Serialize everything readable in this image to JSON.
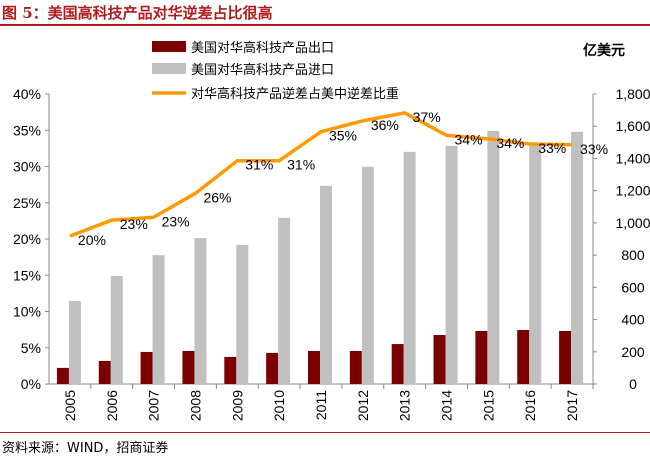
{
  "title": "图 5：美国高科技产品对华逆差占比很高",
  "source": "资料来源：WIND，招商证券",
  "chart_data": {
    "type": "bar+line",
    "categories": [
      "2005",
      "2006",
      "2007",
      "2008",
      "2009",
      "2010",
      "2011",
      "2012",
      "2013",
      "2014",
      "2015",
      "2016",
      "2017"
    ],
    "right_axis_unit": "亿美元",
    "series": [
      {
        "name": "美国对华高科技产品出口",
        "type": "bar",
        "axis": "right",
        "color": "#7b0000",
        "values": [
          100,
          143,
          199,
          205,
          168,
          193,
          205,
          205,
          248,
          304,
          329,
          335,
          329
        ]
      },
      {
        "name": "美国对华高科技产品进口",
        "type": "bar",
        "axis": "right",
        "color": "#c0c0c0",
        "values": [
          515,
          670,
          800,
          906,
          863,
          1031,
          1230,
          1348,
          1441,
          1478,
          1571,
          1484,
          1565
        ]
      },
      {
        "name": "对华高科技产品逆差占美中逆差比重",
        "type": "line",
        "axis": "left",
        "color": "#ff9900",
        "values": [
          20.4,
          22.6,
          23.0,
          26.3,
          30.8,
          30.8,
          34.8,
          36.3,
          37.4,
          34.3,
          33.8,
          33.1,
          33.0
        ],
        "labels": [
          "20%",
          "23%",
          "23%",
          "26%",
          "31%",
          "31%",
          "35%",
          "36%",
          "37%",
          "34%",
          "34%",
          "33%",
          "33%"
        ]
      }
    ],
    "left_axis": {
      "ylim": [
        0,
        40
      ],
      "ticks": [
        "0%",
        "5%",
        "10%",
        "15%",
        "20%",
        "25%",
        "30%",
        "35%",
        "40%"
      ]
    },
    "right_axis": {
      "ylim": [
        0,
        1800
      ],
      "ticks": [
        "0",
        "200",
        "400",
        "600",
        "800",
        "1,000",
        "1,200",
        "1,400",
        "1,600",
        "1,800"
      ]
    },
    "legend": "top",
    "grid": false
  }
}
